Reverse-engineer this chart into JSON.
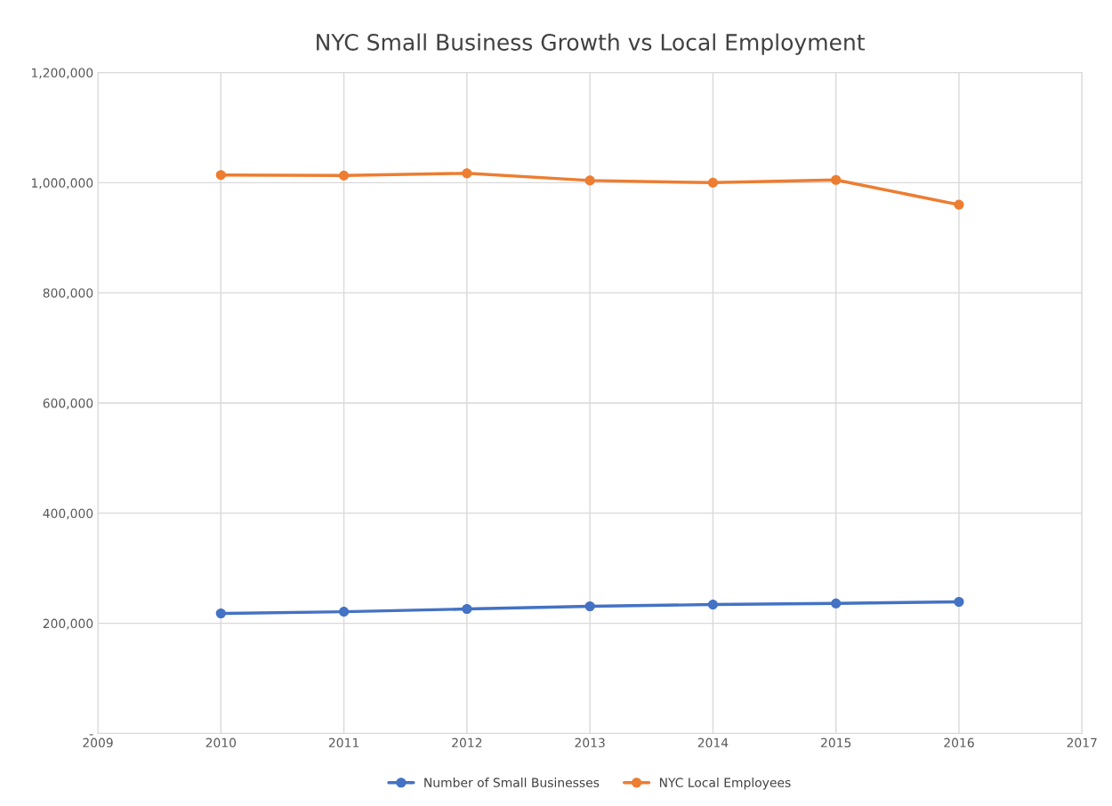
{
  "chart_data": {
    "type": "line",
    "title": "NYC Small Business Growth vs Local Employment",
    "x": [
      2010,
      2011,
      2012,
      2013,
      2014,
      2015,
      2016
    ],
    "series": [
      {
        "name": "Number of Small Businesses",
        "color": "#4472c4",
        "values": [
          218000,
          221000,
          226000,
          231000,
          234000,
          236000,
          239000
        ]
      },
      {
        "name": "NYC Local Employees",
        "color": "#ed7d31",
        "values": [
          1014000,
          1013000,
          1017000,
          1004000,
          1000000,
          1005000,
          960000
        ]
      }
    ],
    "xlim": [
      2009,
      2017
    ],
    "xticks": [
      2009,
      2010,
      2011,
      2012,
      2013,
      2014,
      2015,
      2016,
      2017
    ],
    "ylim": [
      0,
      1200000
    ],
    "yticks": [
      {
        "value": 0,
        "label": "-"
      },
      {
        "value": 200000,
        "label": "200,000"
      },
      {
        "value": 400000,
        "label": "400,000"
      },
      {
        "value": 600000,
        "label": "600,000"
      },
      {
        "value": 800000,
        "label": "800,000"
      },
      {
        "value": 1000000,
        "label": "1,000,000"
      },
      {
        "value": 1200000,
        "label": "1,200,000"
      }
    ],
    "grid": true,
    "legend": "bottom",
    "marker": "circle",
    "line_style": "solid"
  }
}
